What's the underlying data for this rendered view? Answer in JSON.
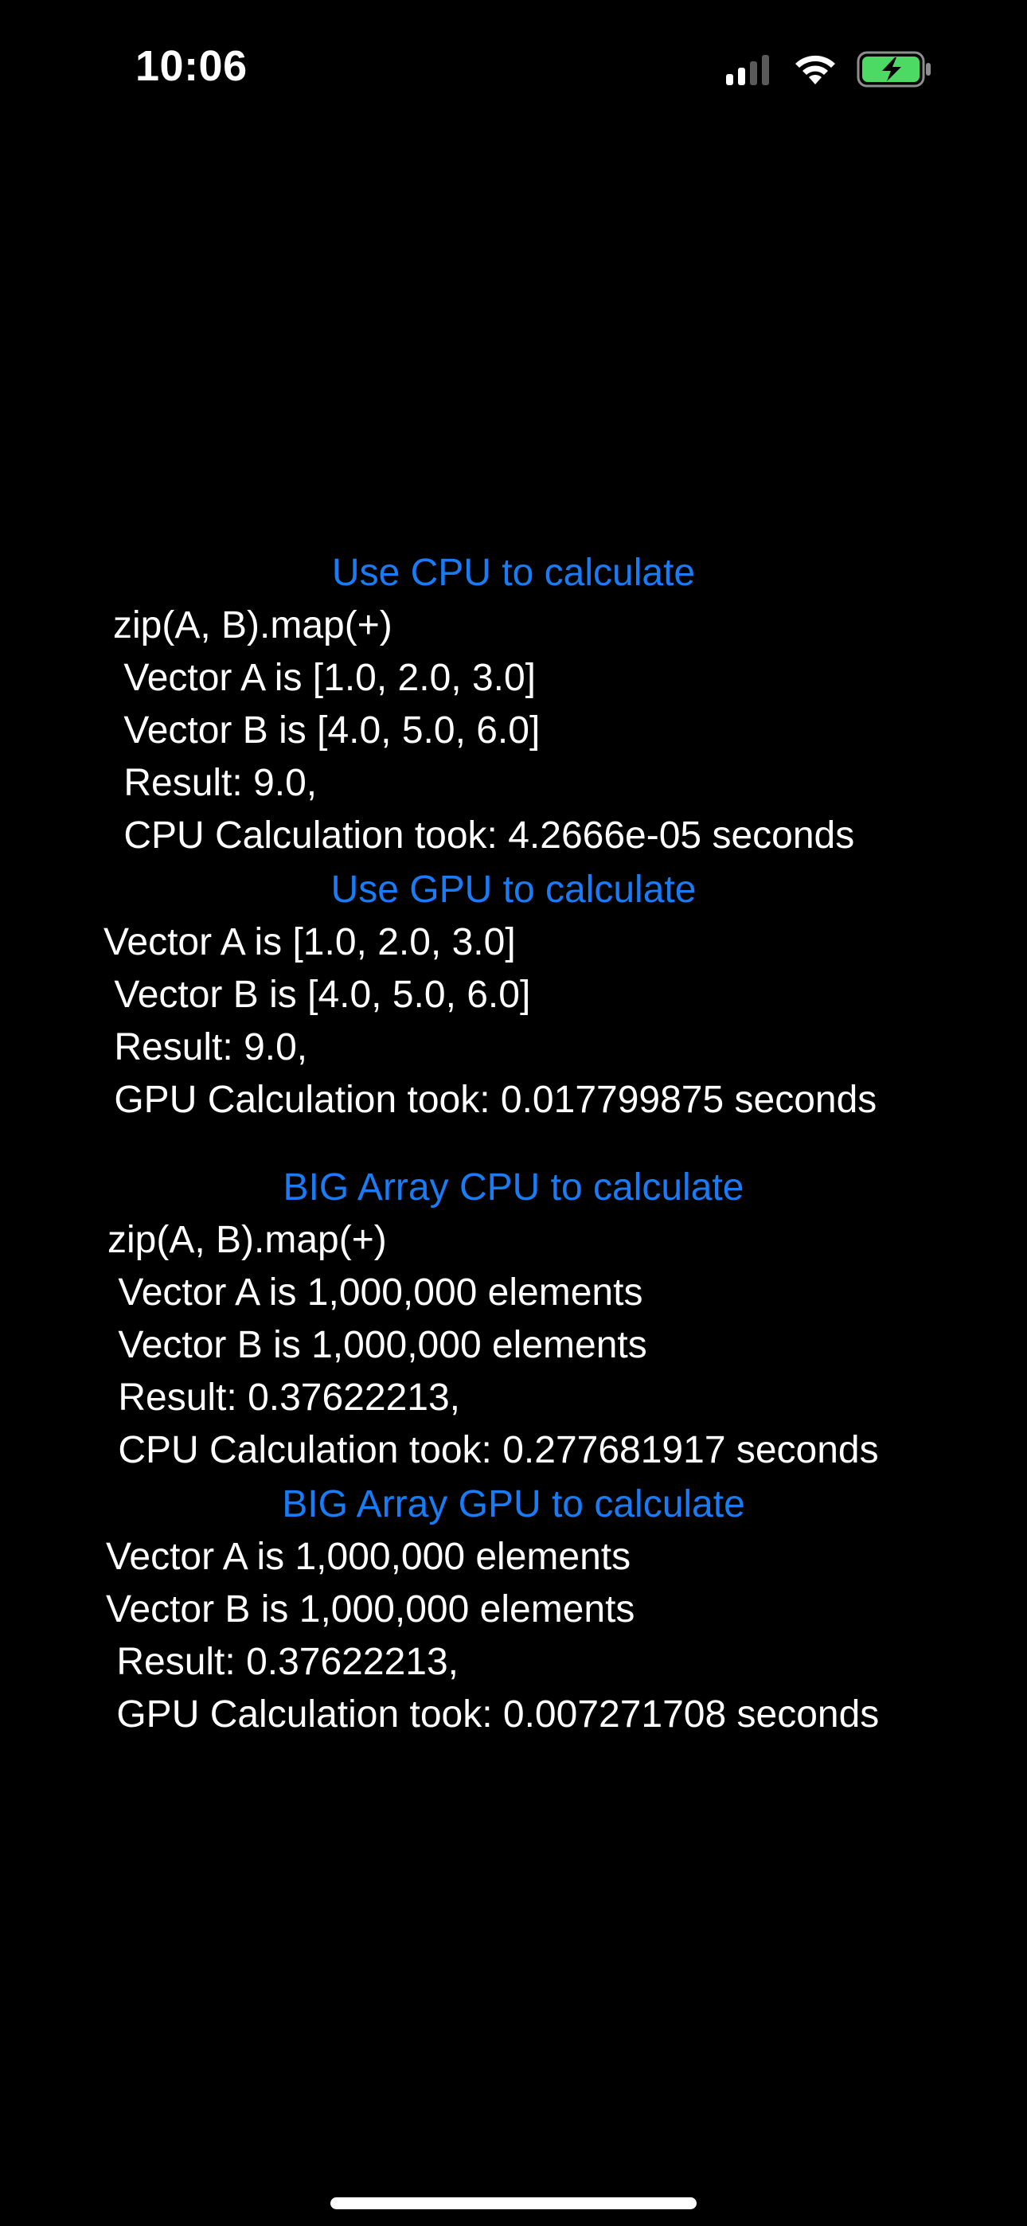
{
  "status_bar": {
    "time": "10:06",
    "battery_color": "#4cd964"
  },
  "sections": {
    "cpu_button": "Use CPU to calculate",
    "cpu_lines": [
      "zip(A, B).map(+)",
      " Vector A is [1.0, 2.0, 3.0]",
      " Vector B is [4.0, 5.0, 6.0]",
      " Result: 9.0,",
      " CPU Calculation took: 4.2666e-05 seconds"
    ],
    "gpu_button": "Use GPU to calculate",
    "gpu_lines": [
      "Vector A is [1.0, 2.0, 3.0]",
      " Vector B is [4.0, 5.0, 6.0]",
      " Result: 9.0,",
      " GPU Calculation took: 0.017799875 seconds"
    ],
    "big_cpu_button": "BIG Array CPU to calculate",
    "big_cpu_lines": [
      "zip(A, B).map(+)",
      " Vector A is 1,000,000 elements",
      " Vector B is 1,000,000 elements",
      " Result: 0.37622213,",
      " CPU Calculation took: 0.277681917 seconds"
    ],
    "big_gpu_button": "BIG Array GPU to calculate",
    "big_gpu_lines": [
      "Vector A is 1,000,000 elements",
      "Vector B is 1,000,000 elements",
      " Result: 0.37622213,",
      " GPU Calculation took: 0.007271708 seconds"
    ]
  },
  "colors": {
    "accent": "#1a7cf5",
    "text": "#ffffff",
    "background": "#000000"
  }
}
